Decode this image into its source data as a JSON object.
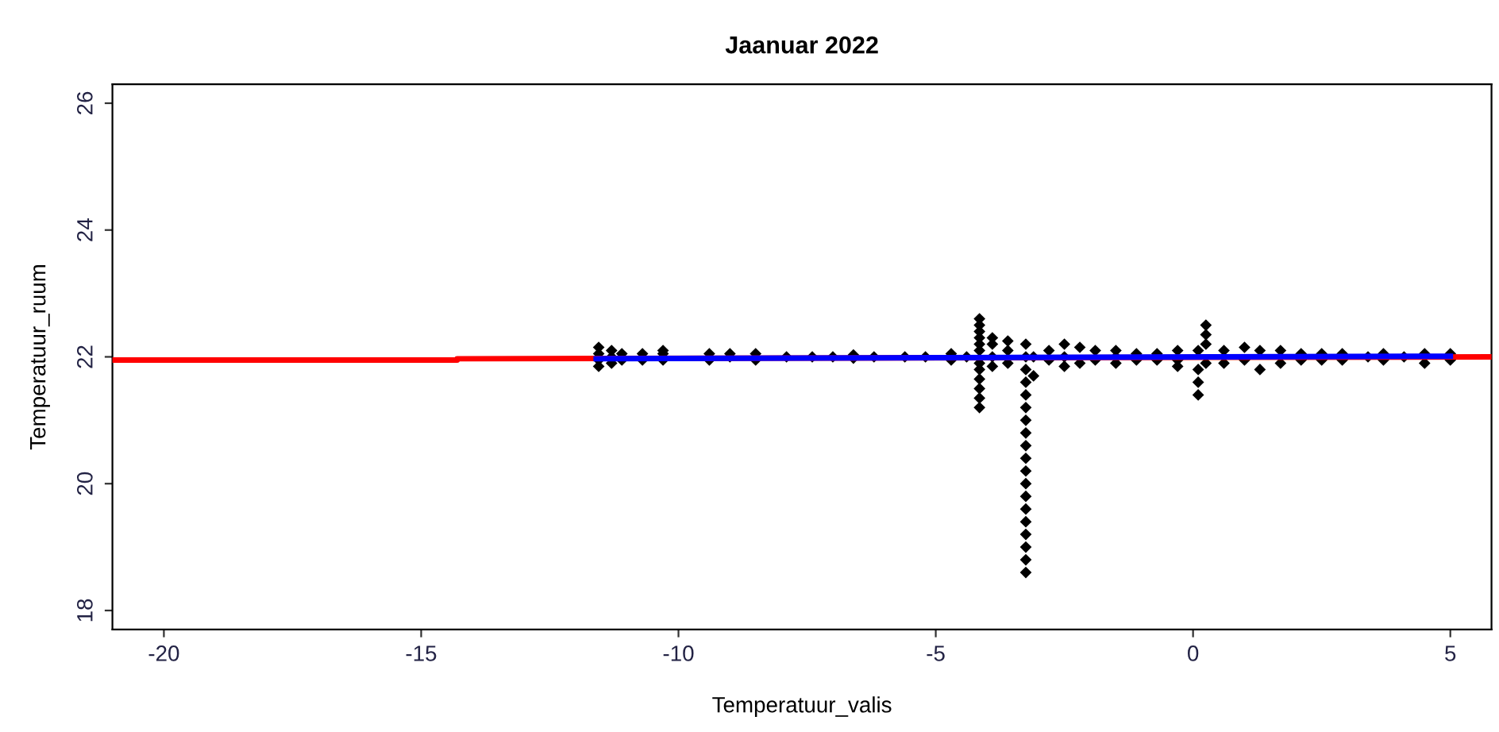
{
  "chart_data": {
    "type": "scatter",
    "title": "Jaanuar 2022",
    "xlabel": "Temperatuur_valis",
    "ylabel": "Temperatuur_ruum",
    "xlim": [
      -21.0,
      5.8
    ],
    "ylim": [
      17.7,
      26.3
    ],
    "xticks": [
      -20,
      -15,
      -10,
      -5,
      0,
      5
    ],
    "yticks": [
      18,
      20,
      22,
      24,
      26
    ],
    "grid": false,
    "series": [
      {
        "marker": "diamond",
        "color": "#000000",
        "x": [
          -11.55,
          -11.55,
          -11.55,
          -11.55,
          -11.3,
          -11.3,
          -11.3,
          -11.1,
          -11.1,
          -10.7,
          -10.7,
          -10.3,
          -10.3,
          -10.3,
          -9.4,
          -9.4,
          -9.0,
          -9.0,
          -8.5,
          -8.5,
          -7.9,
          -7.4,
          -7.0,
          -6.6,
          -6.6,
          -6.2,
          -5.6,
          -5.2,
          -4.7,
          -4.7,
          -4.4,
          -4.15,
          -4.15,
          -4.15,
          -4.15,
          -4.15,
          -4.15,
          -4.15,
          -4.15,
          -4.15,
          -4.15,
          -4.15,
          -4.15,
          -3.9,
          -3.9,
          -3.9,
          -3.9,
          -3.6,
          -3.6,
          -3.6,
          -3.25,
          -3.25,
          -3.25,
          -3.25,
          -3.25,
          -3.25,
          -3.25,
          -3.25,
          -3.25,
          -3.25,
          -3.25,
          -3.25,
          -3.25,
          -3.25,
          -3.25,
          -3.25,
          -3.25,
          -3.25,
          -3.25,
          -3.1,
          -3.1,
          -2.8,
          -2.8,
          -2.5,
          -2.5,
          -2.5,
          -2.2,
          -2.2,
          -1.9,
          -1.9,
          -1.5,
          -1.5,
          -1.5,
          -1.1,
          -1.1,
          -0.7,
          -0.7,
          -0.3,
          -0.3,
          -0.3,
          0.1,
          0.1,
          0.1,
          0.1,
          0.25,
          0.25,
          0.25,
          0.25,
          0.6,
          0.6,
          1.0,
          1.0,
          1.3,
          1.3,
          1.7,
          1.7,
          2.1,
          2.1,
          2.5,
          2.5,
          2.9,
          2.9,
          3.4,
          3.7,
          3.7,
          4.1,
          4.5,
          4.5,
          5.0,
          5.0
        ],
        "values": [
          21.85,
          21.95,
          22.05,
          22.15,
          21.9,
          22.0,
          22.1,
          21.95,
          22.05,
          21.95,
          22.05,
          21.95,
          22.05,
          22.1,
          21.95,
          22.05,
          22.0,
          22.05,
          21.95,
          22.05,
          22.0,
          22.0,
          22.0,
          21.98,
          22.03,
          22.0,
          22.0,
          22.0,
          21.95,
          22.05,
          22.0,
          22.6,
          22.5,
          22.4,
          22.3,
          22.2,
          22.1,
          21.9,
          21.8,
          21.65,
          21.5,
          21.35,
          21.2,
          22.3,
          22.2,
          22.0,
          21.85,
          22.25,
          22.1,
          21.9,
          22.2,
          22.0,
          21.8,
          21.6,
          21.4,
          21.2,
          21.0,
          20.8,
          20.6,
          20.4,
          20.2,
          20.0,
          19.8,
          19.6,
          19.4,
          19.2,
          19.0,
          18.8,
          18.6,
          22.0,
          21.7,
          22.1,
          21.95,
          22.2,
          22.0,
          21.85,
          22.15,
          21.9,
          22.1,
          21.95,
          22.1,
          22.0,
          21.9,
          22.05,
          21.95,
          22.05,
          21.95,
          22.1,
          21.95,
          21.85,
          21.8,
          21.6,
          21.4,
          22.1,
          22.5,
          22.35,
          22.2,
          21.9,
          22.1,
          21.9,
          22.15,
          21.95,
          22.1,
          21.8,
          22.1,
          21.9,
          22.05,
          21.95,
          22.05,
          21.95,
          22.05,
          21.95,
          22.0,
          22.05,
          21.95,
          22.0,
          22.05,
          21.9,
          22.05,
          21.95
        ]
      },
      {
        "type": "line",
        "color": "#ff0000",
        "x": [
          -21.0,
          -14.3,
          -14.3,
          5.8
        ],
        "values": [
          21.95,
          21.95,
          21.97,
          22.0
        ]
      },
      {
        "type": "line",
        "color": "#0000ff",
        "x": [
          -11.6,
          5.0
        ],
        "values": [
          21.97,
          22.01
        ]
      }
    ]
  }
}
